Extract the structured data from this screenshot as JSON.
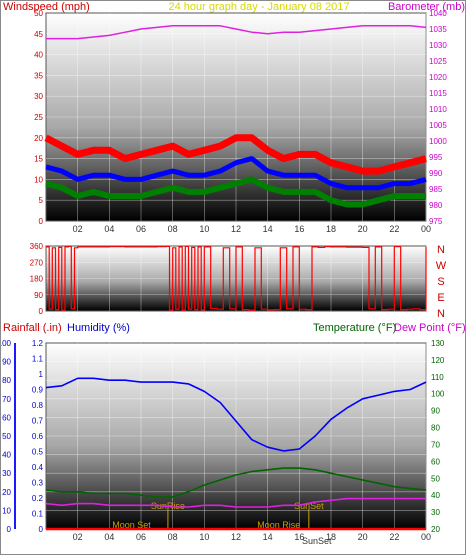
{
  "chart_data": [
    {
      "type": "line",
      "title": "24 hour graph day - January 08 2017",
      "ylabel_left": "Windspeed (mph)",
      "ylabel_right": "Barometer (mb)",
      "x_ticks": [
        "02",
        "04",
        "06",
        "08",
        "10",
        "12",
        "14",
        "16",
        "18",
        "20",
        "22",
        "00"
      ],
      "ylim_left": [
        0,
        50
      ],
      "yticks_left": [
        "0",
        "5",
        "10",
        "15",
        "20",
        "25",
        "30",
        "35",
        "40",
        "45",
        "50"
      ],
      "ylim_right": [
        975,
        1040
      ],
      "yticks_right": [
        "975",
        "980",
        "985",
        "990",
        "995",
        "1000",
        "1005",
        "1010",
        "1015",
        "1020",
        "1025",
        "1030",
        "1035",
        "1040"
      ],
      "grid": true,
      "series": [
        {
          "key": "barometer",
          "axis": "right",
          "color": "#e020e0",
          "x": [
            0,
            1,
            2,
            3,
            4,
            5,
            6,
            7,
            8,
            9,
            10,
            11,
            12,
            13,
            14,
            15,
            16,
            17,
            18,
            19,
            20,
            21,
            22,
            23,
            24
          ],
          "values": [
            1032,
            1032,
            1032,
            1032.5,
            1033,
            1034,
            1035,
            1035.5,
            1036,
            1036,
            1036,
            1036,
            1035,
            1034,
            1033.5,
            1034,
            1034,
            1034.5,
            1035,
            1035.5,
            1036,
            1036,
            1036,
            1036,
            1035.5
          ]
        },
        {
          "key": "windgust",
          "axis": "left",
          "color": "#ff0000",
          "x": [
            0,
            1,
            2,
            3,
            4,
            5,
            6,
            7,
            8,
            9,
            10,
            11,
            12,
            13,
            14,
            15,
            16,
            17,
            18,
            19,
            20,
            21,
            22,
            23,
            24
          ],
          "values": [
            20,
            18,
            16,
            17,
            17,
            15,
            16,
            17,
            18,
            16,
            17,
            18,
            20,
            20,
            17,
            15,
            16,
            16,
            14,
            13,
            12,
            12,
            13,
            14,
            15
          ]
        },
        {
          "key": "avgwind",
          "axis": "left",
          "color": "#0000ff",
          "x": [
            0,
            1,
            2,
            3,
            4,
            5,
            6,
            7,
            8,
            9,
            10,
            11,
            12,
            13,
            14,
            15,
            16,
            17,
            18,
            19,
            20,
            21,
            22,
            23,
            24
          ],
          "values": [
            13,
            12,
            10,
            11,
            11,
            10,
            10,
            11,
            12,
            11,
            11,
            12,
            14,
            15,
            12,
            11,
            11,
            11,
            9,
            8,
            8,
            8,
            9,
            9,
            10
          ]
        },
        {
          "key": "windspeed",
          "axis": "left",
          "color": "#008000",
          "x": [
            0,
            1,
            2,
            3,
            4,
            5,
            6,
            7,
            8,
            9,
            10,
            11,
            12,
            13,
            14,
            15,
            16,
            17,
            18,
            19,
            20,
            21,
            22,
            23,
            24
          ],
          "values": [
            9,
            8,
            6,
            7,
            6,
            6,
            6,
            7,
            8,
            7,
            7,
            8,
            9,
            10,
            8,
            7,
            7,
            7,
            5,
            4,
            4,
            5,
            6,
            6,
            6
          ]
        }
      ]
    },
    {
      "type": "line",
      "ylim": [
        0,
        360
      ],
      "yticks": [
        "0",
        "90",
        "180",
        "270",
        "360"
      ],
      "direction_labels": [
        "N",
        "W",
        "S",
        "E",
        "N"
      ],
      "grid": true,
      "series": [
        {
          "key": "winddir",
          "color": "#ff0000",
          "x": [
            0,
            0.2,
            0.4,
            0.6,
            0.8,
            1.0,
            1.2,
            1.4,
            1.6,
            1.8,
            2.0,
            3,
            4,
            5,
            6,
            7,
            7.6,
            7.8,
            8.0,
            8.2,
            8.4,
            8.6,
            8.8,
            9.0,
            9.2,
            9.4,
            9.6,
            9.8,
            10.0,
            10.4,
            10.8,
            11.2,
            11.6,
            12.0,
            12.4,
            12.8,
            13.2,
            13.6,
            14.0,
            14.4,
            14.8,
            15.2,
            15.6,
            16.0,
            16.4,
            16.8,
            17.2,
            17.6,
            18,
            19,
            20,
            20.4,
            20.8,
            21.2,
            21.6,
            22,
            22.4,
            22.8,
            23.2,
            23.6,
            24
          ],
          "values": [
            355,
            10,
            350,
            8,
            352,
            5,
            355,
            358,
            12,
            350,
            355,
            355,
            356,
            355,
            355,
            356,
            358,
            5,
            350,
            10,
            355,
            5,
            358,
            10,
            352,
            8,
            355,
            6,
            355,
            15,
            10,
            350,
            12,
            355,
            8,
            5,
            350,
            10,
            6,
            8,
            350,
            12,
            355,
            10,
            8,
            355,
            352,
            356,
            355,
            354,
            352,
            12,
            355,
            8,
            10,
            356,
            8,
            10,
            12,
            8,
            355
          ]
        }
      ]
    },
    {
      "type": "line",
      "ylabel_left_1": "Rainfall (.in)",
      "ylabel_left_2": "Humidity (%)",
      "ylabel_right_1": "Temperature (°F)",
      "ylabel_right_2": "Dew Point (°F)",
      "x_ticks": [
        "02",
        "04",
        "06",
        "08",
        "10",
        "12",
        "14",
        "16",
        "18",
        "20",
        "22",
        "00"
      ],
      "ylim_rain": [
        0,
        1.2
      ],
      "yticks_rain": [
        "0",
        "0.1",
        "0.2",
        "0.3",
        "0.4",
        "0.5",
        "0.6",
        "0.7",
        "0.8",
        "0.9",
        "1",
        "1.1",
        "1.2"
      ],
      "ylim_humidity": [
        0,
        100
      ],
      "yticks_humidity": [
        "0",
        "10",
        "20",
        "30",
        "40",
        "50",
        "60",
        "70",
        "80",
        "90",
        "100"
      ],
      "ylim_temp": [
        20,
        130
      ],
      "yticks_temp": [
        "20",
        "30",
        "40",
        "50",
        "60",
        "70",
        "80",
        "90",
        "100",
        "110",
        "120",
        "130"
      ],
      "grid": true,
      "series": [
        {
          "key": "humidity",
          "axis": "humidity",
          "color": "#0000ff",
          "x": [
            0,
            1,
            2,
            3,
            4,
            5,
            6,
            7,
            8,
            9,
            10,
            11,
            12,
            13,
            14,
            15,
            16,
            17,
            18,
            19,
            20,
            21,
            22,
            23,
            24
          ],
          "values": [
            76,
            77,
            81,
            81,
            80,
            80,
            79,
            79,
            79,
            78,
            74,
            68,
            58,
            48,
            44,
            42,
            43,
            50,
            59,
            65,
            70,
            72,
            74,
            75,
            79
          ]
        },
        {
          "key": "temperature",
          "axis": "temp",
          "color": "#006400",
          "x": [
            0,
            1,
            2,
            3,
            4,
            5,
            6,
            7,
            8,
            9,
            10,
            11,
            12,
            13,
            14,
            15,
            16,
            17,
            18,
            19,
            20,
            21,
            22,
            23,
            24
          ],
          "values": [
            43,
            42,
            42,
            41,
            41,
            41,
            40,
            39,
            39,
            42,
            46,
            49,
            52,
            54,
            55,
            56,
            56,
            55,
            53,
            51,
            49,
            47,
            45,
            44,
            43
          ]
        },
        {
          "key": "dewpoint",
          "axis": "temp",
          "color": "#e020e0",
          "x": [
            0,
            1,
            2,
            3,
            4,
            5,
            6,
            7,
            8,
            9,
            10,
            11,
            12,
            13,
            14,
            15,
            16,
            17,
            18,
            19,
            20,
            21,
            22,
            23,
            24
          ],
          "values": [
            35,
            34,
            35,
            35,
            34,
            34,
            34,
            34,
            33,
            33,
            34,
            34,
            33,
            33,
            33,
            34,
            34,
            36,
            37,
            38,
            38,
            38,
            38,
            38,
            38
          ]
        },
        {
          "key": "rainfall",
          "axis": "rain",
          "color": "#ff0000",
          "x": [
            0,
            24
          ],
          "values": [
            0,
            0
          ]
        }
      ],
      "events": [
        {
          "key": "moonset",
          "label": "Moon Set",
          "x": 5.4
        },
        {
          "key": "sunrise",
          "label": "SunRise",
          "x": 7.7
        },
        {
          "key": "moonrise",
          "label": "Moon Rise",
          "x": 14.7
        },
        {
          "key": "sunset",
          "label": "SunSet",
          "x": 16.6
        },
        {
          "key": "sunset_marker",
          "label": "SunSet",
          "x": 17.1
        }
      ]
    }
  ],
  "colors": {
    "wind_label": "#cc0000",
    "baro_label": "#cc00cc",
    "title": "#d8d800",
    "rain_label": "#cc0000",
    "humidity_label": "#0000cc",
    "temp_label": "#006400",
    "dew_label": "#cc00cc",
    "event_label": "#c8a000",
    "axis_tick": "#333333"
  }
}
